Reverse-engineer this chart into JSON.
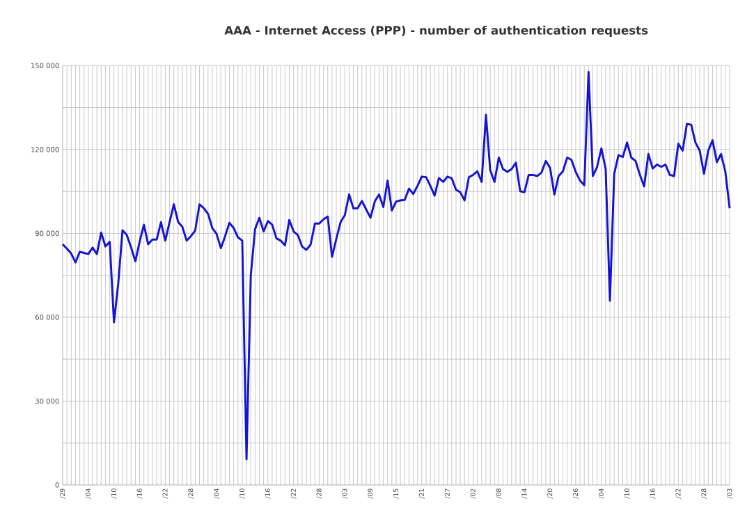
{
  "chart_data": {
    "type": "line",
    "title": "AAA - Internet Access (PPP) - number of authentication requests",
    "categories": [
      "/29",
      null,
      null,
      null,
      null,
      null,
      "/04",
      null,
      null,
      null,
      null,
      null,
      "/10",
      null,
      null,
      null,
      null,
      null,
      "/16",
      null,
      null,
      null,
      null,
      null,
      "/22",
      null,
      null,
      null,
      null,
      null,
      "/28",
      null,
      null,
      null,
      null,
      null,
      "/04",
      null,
      null,
      null,
      null,
      null,
      "/10",
      null,
      null,
      null,
      null,
      null,
      "/16",
      null,
      null,
      null,
      null,
      null,
      "/22",
      null,
      null,
      null,
      null,
      null,
      "/28",
      null,
      null,
      null,
      null,
      null,
      "/03",
      null,
      null,
      null,
      null,
      null,
      "/09",
      null,
      null,
      null,
      null,
      null,
      "/15",
      null,
      null,
      null,
      null,
      null,
      "/21",
      null,
      null,
      null,
      null,
      null,
      "/27",
      null,
      null,
      null,
      null,
      null,
      "/02",
      null,
      null,
      null,
      null,
      null,
      "/08",
      null,
      null,
      null,
      null,
      null,
      "/14",
      null,
      null,
      null,
      null,
      null,
      "/20",
      null,
      null,
      null,
      null,
      null,
      "/26",
      null,
      null,
      null,
      null,
      null,
      "/04",
      null,
      null,
      null,
      null,
      null,
      "/10",
      null,
      null,
      null,
      null,
      null,
      "/16",
      null,
      null,
      null,
      null,
      null,
      "/22",
      null,
      null,
      null,
      null,
      null,
      "/28",
      null,
      null,
      null,
      null,
      null,
      "/03"
    ],
    "series": [
      {
        "color": "#1414d2",
        "values": [
          86100,
          84500,
          82800,
          79600,
          83400,
          83000,
          82600,
          84900,
          82600,
          90300,
          85300,
          87000,
          58200,
          72000,
          91100,
          89400,
          85000,
          80000,
          87000,
          93100,
          86100,
          87800,
          87800,
          94000,
          87400,
          94000,
          100400,
          94100,
          92300,
          87400,
          89000,
          91000,
          100400,
          99000,
          97000,
          91900,
          89800,
          84700,
          89000,
          93800,
          91900,
          88600,
          87400,
          9200,
          75000,
          91500,
          95600,
          90700,
          94400,
          93100,
          88200,
          87400,
          85700,
          94800,
          90700,
          89400,
          85300,
          84100,
          86000,
          93500,
          93500,
          95000,
          96000,
          81600,
          88000,
          94000,
          96500,
          103900,
          98900,
          99000,
          101600,
          98500,
          95600,
          101400,
          103900,
          99400,
          108900,
          98200,
          101400,
          101800,
          102000,
          106000,
          104100,
          107000,
          110300,
          110100,
          107000,
          103500,
          109800,
          108400,
          110300,
          109700,
          105600,
          104700,
          101800,
          110100,
          110900,
          112200,
          108400,
          132400,
          112600,
          108400,
          117100,
          113000,
          112000,
          113000,
          115300,
          105100,
          104700,
          110900,
          110900,
          110500,
          111800,
          115900,
          113400,
          103900,
          110500,
          112200,
          117100,
          116300,
          112000,
          108900,
          107200,
          147700,
          110500,
          113800,
          120400,
          113000,
          65900,
          111300,
          118000,
          117300,
          122500,
          117100,
          115900,
          111000,
          106800,
          118400,
          113200,
          114600,
          113800,
          114600,
          110900,
          110500,
          122100,
          119600,
          129100,
          128900,
          122500,
          119600,
          111300,
          119600,
          123300,
          115500,
          118400,
          112000,
          99000
        ]
      }
    ],
    "ylim": [
      0,
      150000
    ],
    "yticks": [
      {
        "value": 0,
        "label": "0"
      },
      {
        "value": 15000,
        "label": null
      },
      {
        "value": 30000,
        "label": "30 000"
      },
      {
        "value": 45000,
        "label": null
      },
      {
        "value": 60000,
        "label": "60 000"
      },
      {
        "value": 75000,
        "label": null
      },
      {
        "value": 90000,
        "label": "90 000"
      },
      {
        "value": 105000,
        "label": null
      },
      {
        "value": 120000,
        "label": "120 000"
      },
      {
        "value": 135000,
        "label": null
      },
      {
        "value": 150000,
        "label": "150 000"
      }
    ],
    "grid": true
  }
}
